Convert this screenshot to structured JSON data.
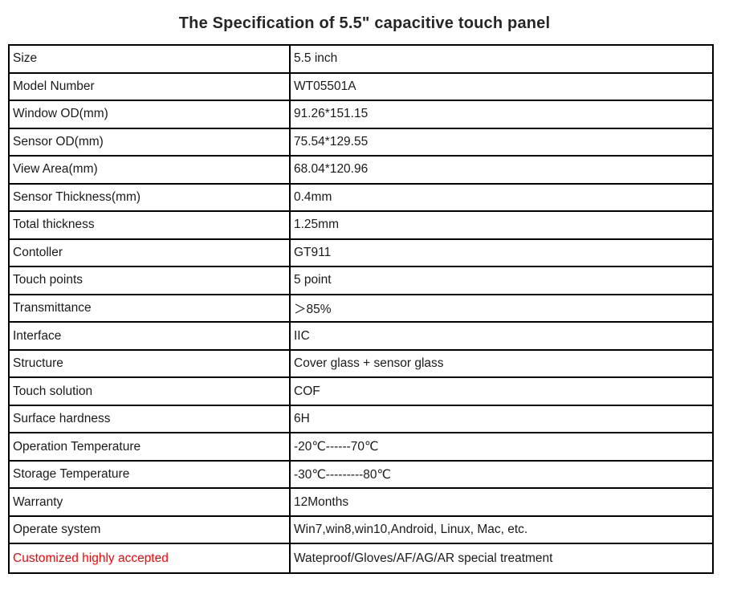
{
  "title": "The Specification of 5.5\" capacitive touch panel",
  "colors": {
    "highlight_red": "#ff0000",
    "border": "#000000",
    "text": "#1a1a1a",
    "background": "#ffffff"
  },
  "table": {
    "columns": [
      "parameter",
      "value"
    ],
    "rows": [
      {
        "label": "Size",
        "value": "5.5 inch",
        "label_color": "black"
      },
      {
        "label": "Model Number",
        "value": "WT05501A",
        "label_color": "black"
      },
      {
        "label": "Window OD(mm)",
        "value": "91.26*151.15",
        "label_color": "black"
      },
      {
        "label": "Sensor OD(mm)",
        "value": "75.54*129.55",
        "label_color": "black"
      },
      {
        "label": "View Area(mm)",
        "value": "68.04*120.96",
        "label_color": "black"
      },
      {
        "label": "Sensor Thickness(mm)",
        "value": "0.4mm",
        "label_color": "black"
      },
      {
        "label": "Total thickness",
        "value": "1.25mm",
        "label_color": "black"
      },
      {
        "label": "Contoller",
        "value": "GT911",
        "label_color": "black"
      },
      {
        "label": "Touch points",
        "value": "5 point",
        "label_color": "black"
      },
      {
        "label": "Transmittance",
        "value": "＞85%",
        "label_color": "black"
      },
      {
        "label": "Interface",
        "value": "IIC",
        "label_color": "black"
      },
      {
        "label": "Structure",
        "value": "Cover glass + sensor glass",
        "label_color": "black"
      },
      {
        "label": "Touch solution",
        "value": "COF",
        "label_color": "black"
      },
      {
        "label": "Surface hardness",
        "value": "6H",
        "label_color": "black"
      },
      {
        "label": "Operation Temperature",
        "value": "-20℃------70℃",
        "label_color": "black"
      },
      {
        "label": "Storage Temperature",
        "value": "-30℃---------80℃",
        "label_color": "black"
      },
      {
        "label": "Warranty",
        "value": "12Months",
        "label_color": "black"
      },
      {
        "label": "Operate system",
        "value": "Win7,win8,win10,Android, Linux, Mac, etc.",
        "label_color": "black"
      },
      {
        "label": "Customized highly accepted",
        "value": "Wateproof/Gloves/AF/AG/AR special treatment",
        "label_color": "red"
      }
    ]
  }
}
